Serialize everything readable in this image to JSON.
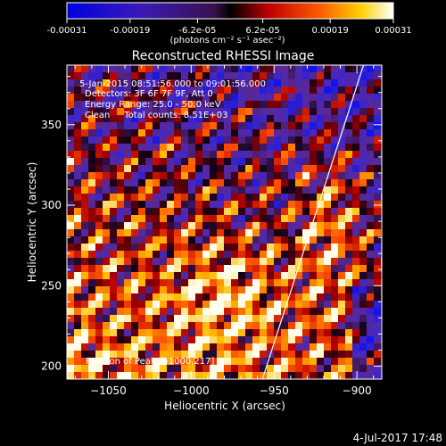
{
  "colorbar": {
    "tick_labels": [
      "-0.00031",
      "-0.00019",
      "-6.2e-05",
      "6.2e-05",
      "0.00019",
      "0.00031"
    ],
    "unit_label": "(photons cm⁻² s⁻¹ asec⁻²)",
    "range": [
      -0.00031,
      0.00031
    ]
  },
  "chart_data": {
    "type": "heatmap",
    "title": "Reconstructed RHESSI Image",
    "xlabel": "Heliocentric X (arcsec)",
    "ylabel": "Heliocentric Y (arcsec)",
    "xlim": [
      -1075,
      -885
    ],
    "ylim": [
      192,
      387
    ],
    "x_ticks": [
      -1050,
      -1000,
      -950,
      -900
    ],
    "x_tick_labels": [
      "−1050",
      "−1000",
      "−950",
      "−900"
    ],
    "y_ticks": [
      200,
      250,
      300,
      350
    ],
    "y_tick_labels": [
      "200",
      "250",
      "300",
      "350"
    ],
    "annotations": [
      "5-Jan-2015 08:51:56.000 to 09:01:56.000",
      "Detectors: 3F 6F 7F 9F, Att 0",
      "Energy Range: 25.0 - 50.0 keV",
      "Clean     Total counts: 8.51E+03"
    ],
    "peak_label": "Position of Peak: [-1000,217]",
    "limb_line": {
      "x": [
        -957,
        -896
      ],
      "y": [
        192,
        387
      ]
    },
    "colormap": "blue-purple-red-yellow-white"
  },
  "footer": {
    "timestamp": "4-Jul-2017 17:48"
  }
}
